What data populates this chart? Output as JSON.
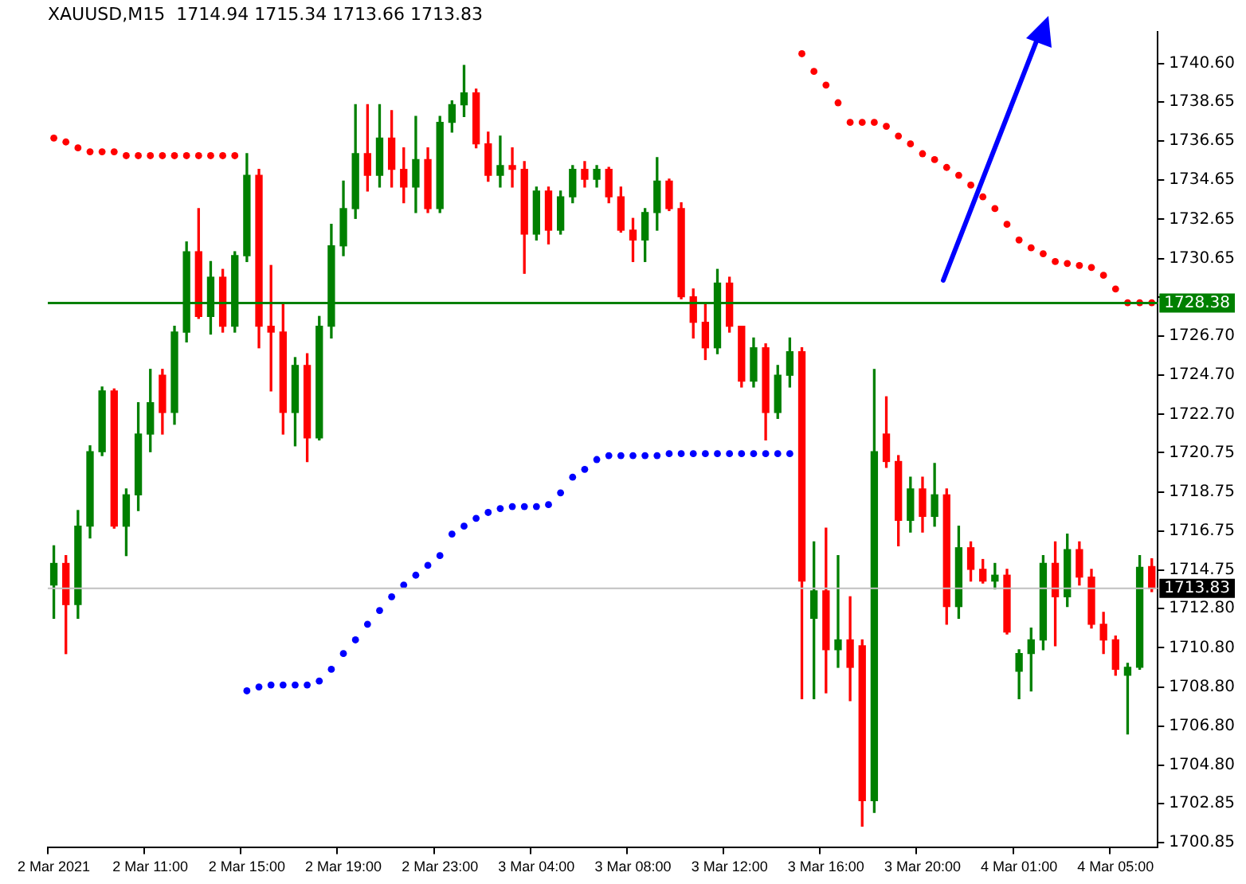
{
  "chart_data": {
    "type": "candlestick",
    "title": "XAUUSD,M15  1714.94 1715.34 1713.66 1713.83",
    "categories": [
      "2 Mar 2021",
      null,
      null,
      null,
      null,
      null,
      null,
      null,
      "2 Mar 11:00",
      null,
      null,
      null,
      null,
      null,
      null,
      null,
      "2 Mar 15:00",
      null,
      null,
      null,
      null,
      null,
      null,
      null,
      "2 Mar 19:00",
      null,
      null,
      null,
      null,
      null,
      null,
      null,
      "2 Mar 23:00",
      null,
      null,
      null,
      null,
      null,
      null,
      null,
      "3 Mar 04:00",
      null,
      null,
      null,
      null,
      null,
      null,
      null,
      "3 Mar 08:00",
      null,
      null,
      null,
      null,
      null,
      null,
      null,
      "3 Mar 12:00",
      null,
      null,
      null,
      null,
      null,
      null,
      null,
      "3 Mar 16:00",
      null,
      null,
      null,
      null,
      null,
      null,
      null,
      "3 Mar 20:00",
      null,
      null,
      null,
      null,
      null,
      null,
      null,
      "4 Mar 01:00",
      null,
      null,
      null,
      null,
      null,
      null,
      null,
      "4 Mar 05:00",
      null,
      null,
      null
    ],
    "ohlc": [
      [
        1714.0,
        1716.0,
        1712.3,
        1715.1
      ],
      [
        1715.1,
        1715.5,
        1710.5,
        1713.0
      ],
      [
        1713.0,
        1717.8,
        1712.3,
        1717.0
      ],
      [
        1717.0,
        1721.1,
        1716.4,
        1720.8
      ],
      [
        1720.8,
        1724.1,
        1720.6,
        1723.9
      ],
      [
        1723.9,
        1724.0,
        1716.9,
        1717.0
      ],
      [
        1717.0,
        1718.9,
        1715.5,
        1718.6
      ],
      [
        1718.6,
        1723.3,
        1717.8,
        1721.7
      ],
      [
        1721.7,
        1725.0,
        1720.8,
        1723.3
      ],
      [
        1724.7,
        1725.0,
        1721.7,
        1722.8
      ],
      [
        1722.8,
        1727.2,
        1722.2,
        1726.9
      ],
      [
        1726.9,
        1731.5,
        1726.4,
        1731.0
      ],
      [
        1731.0,
        1733.2,
        1727.6,
        1727.7
      ],
      [
        1727.7,
        1730.5,
        1726.8,
        1729.7
      ],
      [
        1729.7,
        1730.1,
        1726.9,
        1727.2
      ],
      [
        1727.2,
        1731.0,
        1726.9,
        1730.8
      ],
      [
        1730.8,
        1736.0,
        1730.5,
        1734.9
      ],
      [
        1734.9,
        1735.2,
        1726.1,
        1727.2
      ],
      [
        1727.2,
        1730.3,
        1723.9,
        1726.9
      ],
      [
        1726.9,
        1728.3,
        1721.7,
        1722.8
      ],
      [
        1722.8,
        1725.6,
        1721.1,
        1725.2
      ],
      [
        1725.2,
        1725.8,
        1720.3,
        1721.5
      ],
      [
        1721.5,
        1727.7,
        1721.4,
        1727.2
      ],
      [
        1727.2,
        1732.4,
        1726.6,
        1731.3
      ],
      [
        1731.3,
        1734.6,
        1730.8,
        1733.2
      ],
      [
        1733.2,
        1738.5,
        1732.7,
        1736.0
      ],
      [
        1736.0,
        1738.5,
        1734.1,
        1734.9
      ],
      [
        1734.9,
        1738.5,
        1734.3,
        1736.8
      ],
      [
        1736.8,
        1738.2,
        1734.3,
        1735.2
      ],
      [
        1735.2,
        1736.3,
        1733.5,
        1734.3
      ],
      [
        1734.3,
        1737.9,
        1733.0,
        1735.7
      ],
      [
        1735.7,
        1736.3,
        1733.0,
        1733.2
      ],
      [
        1733.2,
        1737.9,
        1733.0,
        1737.6
      ],
      [
        1737.6,
        1738.7,
        1737.1,
        1738.5
      ],
      [
        1738.5,
        1740.5,
        1737.9,
        1739.1
      ],
      [
        1739.1,
        1739.3,
        1736.3,
        1736.5
      ],
      [
        1736.5,
        1737.1,
        1734.6,
        1734.9
      ],
      [
        1734.9,
        1736.9,
        1734.3,
        1735.4
      ],
      [
        1735.4,
        1736.3,
        1734.3,
        1735.2
      ],
      [
        1735.2,
        1735.6,
        1729.9,
        1731.9
      ],
      [
        1731.9,
        1734.3,
        1731.6,
        1734.1
      ],
      [
        1734.1,
        1734.3,
        1731.4,
        1732.1
      ],
      [
        1732.1,
        1734.1,
        1731.9,
        1733.8
      ],
      [
        1733.8,
        1735.4,
        1733.5,
        1735.2
      ],
      [
        1735.2,
        1735.6,
        1734.3,
        1734.7
      ],
      [
        1734.7,
        1735.4,
        1734.3,
        1735.2
      ],
      [
        1735.2,
        1735.3,
        1733.5,
        1733.8
      ],
      [
        1733.8,
        1734.3,
        1732.0,
        1732.1
      ],
      [
        1732.1,
        1732.7,
        1730.5,
        1731.6
      ],
      [
        1731.6,
        1733.2,
        1730.5,
        1733.0
      ],
      [
        1733.0,
        1735.8,
        1732.1,
        1734.6
      ],
      [
        1734.6,
        1734.7,
        1733.1,
        1733.2
      ],
      [
        1733.2,
        1733.5,
        1728.6,
        1728.7
      ],
      [
        1728.7,
        1729.1,
        1726.6,
        1727.4
      ],
      [
        1727.4,
        1728.3,
        1725.5,
        1726.1
      ],
      [
        1726.1,
        1730.1,
        1725.8,
        1729.4
      ],
      [
        1729.4,
        1729.7,
        1726.9,
        1727.2
      ],
      [
        1727.2,
        1727.2,
        1724.1,
        1724.4
      ],
      [
        1724.4,
        1726.6,
        1724.1,
        1726.1
      ],
      [
        1726.1,
        1726.3,
        1721.4,
        1722.8
      ],
      [
        1722.8,
        1725.2,
        1722.5,
        1724.7
      ],
      [
        1724.7,
        1726.6,
        1724.1,
        1725.9
      ],
      [
        1725.9,
        1726.1,
        1708.2,
        1714.2
      ],
      [
        1712.3,
        1716.2,
        1708.2,
        1713.7
      ],
      [
        1713.7,
        1716.9,
        1708.5,
        1710.7
      ],
      [
        1710.7,
        1715.5,
        1709.8,
        1711.2
      ],
      [
        1711.2,
        1713.4,
        1708.1,
        1709.8
      ],
      [
        1710.9,
        1711.2,
        1701.7,
        1703.0
      ],
      [
        1703.0,
        1725.0,
        1702.4,
        1720.8
      ],
      [
        1721.7,
        1723.6,
        1720.0,
        1720.3
      ],
      [
        1720.3,
        1720.6,
        1716.0,
        1717.3
      ],
      [
        1717.3,
        1719.5,
        1716.7,
        1718.9
      ],
      [
        1718.9,
        1719.5,
        1716.7,
        1717.5
      ],
      [
        1717.5,
        1720.2,
        1717.0,
        1718.6
      ],
      [
        1718.6,
        1718.9,
        1712.0,
        1712.9
      ],
      [
        1712.9,
        1717.0,
        1712.3,
        1715.9
      ],
      [
        1715.9,
        1716.2,
        1714.2,
        1714.8
      ],
      [
        1714.8,
        1715.3,
        1714.1,
        1714.2
      ],
      [
        1714.2,
        1715.1,
        1713.8,
        1714.5
      ],
      [
        1714.5,
        1714.8,
        1711.5,
        1711.6
      ],
      [
        1709.6,
        1710.7,
        1708.2,
        1710.5
      ],
      [
        1710.5,
        1711.8,
        1708.6,
        1711.2
      ],
      [
        1711.2,
        1715.5,
        1710.7,
        1715.1
      ],
      [
        1715.1,
        1716.2,
        1710.9,
        1713.4
      ],
      [
        1713.4,
        1716.6,
        1712.9,
        1715.8
      ],
      [
        1715.8,
        1716.2,
        1714.0,
        1714.4
      ],
      [
        1714.4,
        1714.8,
        1711.8,
        1712.0
      ],
      [
        1712.0,
        1712.6,
        1710.5,
        1711.2
      ],
      [
        1711.2,
        1711.4,
        1709.4,
        1709.7
      ],
      [
        1709.4,
        1710.0,
        1706.4,
        1709.8
      ],
      [
        1709.8,
        1715.5,
        1709.7,
        1714.9
      ],
      [
        1714.94,
        1715.34,
        1713.66,
        1713.83
      ]
    ],
    "series": [
      {
        "type": "scatter",
        "color": "#ff0000",
        "values": [
          1736.8,
          1736.6,
          1736.3,
          1736.1,
          1736.1,
          1736.1,
          1735.9,
          1735.9,
          1735.9,
          1735.9,
          1735.9,
          1735.9,
          1735.9,
          1735.9,
          1735.9,
          1735.9,
          null,
          null,
          null,
          null,
          null,
          null,
          null,
          null,
          null,
          null,
          null,
          null,
          null,
          null,
          null,
          null,
          null,
          null,
          null,
          null,
          null,
          null,
          null,
          null,
          null,
          null,
          null,
          null,
          null,
          null,
          null,
          null,
          null,
          null,
          null,
          null,
          null,
          null,
          null,
          null,
          null,
          null,
          null,
          null,
          null,
          null,
          1741.1,
          1740.2,
          1739.5,
          1738.6,
          1737.6,
          1737.6,
          1737.6,
          1737.4,
          1736.9,
          1736.5,
          1736.0,
          1735.7,
          1735.3,
          1734.9,
          1734.4,
          1733.8,
          1733.2,
          1732.4,
          1731.6,
          1731.2,
          1730.9,
          1730.5,
          1730.4,
          1730.3,
          1730.2,
          1729.8,
          1729.1,
          1728.4,
          1728.4,
          1728.4
        ]
      },
      {
        "type": "scatter",
        "color": "#0000ff",
        "values": [
          null,
          null,
          null,
          null,
          null,
          null,
          null,
          null,
          null,
          null,
          null,
          null,
          null,
          null,
          null,
          null,
          1708.6,
          1708.8,
          1708.9,
          1708.9,
          1708.9,
          1708.9,
          1709.1,
          1709.7,
          1710.5,
          1711.2,
          1712.0,
          1712.7,
          1713.4,
          1714.0,
          1714.5,
          1715.0,
          1715.5,
          1716.6,
          1717.0,
          1717.4,
          1717.7,
          1717.9,
          1718.0,
          1718.0,
          1718.0,
          1718.1,
          1718.7,
          1719.5,
          1719.9,
          1720.4,
          1720.6,
          1720.6,
          1720.6,
          1720.6,
          1720.6,
          1720.7,
          1720.7,
          1720.7,
          1720.7,
          1720.7,
          1720.7,
          1720.7,
          1720.7,
          1720.7,
          1720.7,
          1720.7,
          null,
          null,
          null,
          null,
          null,
          null,
          null,
          null,
          null,
          null,
          null,
          null,
          null,
          null,
          null,
          null,
          null,
          null,
          null,
          null,
          null,
          null,
          null,
          null,
          null,
          null,
          null,
          null,
          null,
          null
        ]
      }
    ],
    "ylim": [
      1700.6,
      1742.2
    ],
    "yticks": [
      {
        "value": 1700.85,
        "label": "1700.85"
      },
      {
        "value": 1702.85,
        "label": "1702.85"
      },
      {
        "value": 1704.8,
        "label": "1704.80"
      },
      {
        "value": 1706.8,
        "label": "1706.80"
      },
      {
        "value": 1708.8,
        "label": "1708.80"
      },
      {
        "value": 1710.8,
        "label": "1710.80"
      },
      {
        "value": 1712.8,
        "label": "1712.80"
      },
      {
        "value": 1714.75,
        "label": "1714.75"
      },
      {
        "value": 1716.75,
        "label": "1716.75"
      },
      {
        "value": 1718.75,
        "label": "1718.75"
      },
      {
        "value": 1720.75,
        "label": "1720.75"
      },
      {
        "value": 1722.7,
        "label": "1722.70"
      },
      {
        "value": 1724.7,
        "label": "1724.70"
      },
      {
        "value": 1726.7,
        "label": "1726.70"
      },
      {
        "value": 1728.7,
        "label": null
      },
      {
        "value": 1730.65,
        "label": "1730.65"
      },
      {
        "value": 1732.65,
        "label": "1732.65"
      },
      {
        "value": 1734.65,
        "label": "1734.65"
      },
      {
        "value": 1736.65,
        "label": "1736.65"
      },
      {
        "value": 1738.65,
        "label": "1738.65"
      },
      {
        "value": 1740.6,
        "label": "1740.60"
      }
    ],
    "ref_lines": [
      {
        "axis": "y",
        "value": 1728.38,
        "label": "1728.38",
        "color": "#008000"
      },
      {
        "axis": "y",
        "value": 1713.83,
        "label": "1713.83",
        "color": "#c0c0c0"
      }
    ],
    "marker": "circle",
    "grid": false,
    "legend": false
  }
}
